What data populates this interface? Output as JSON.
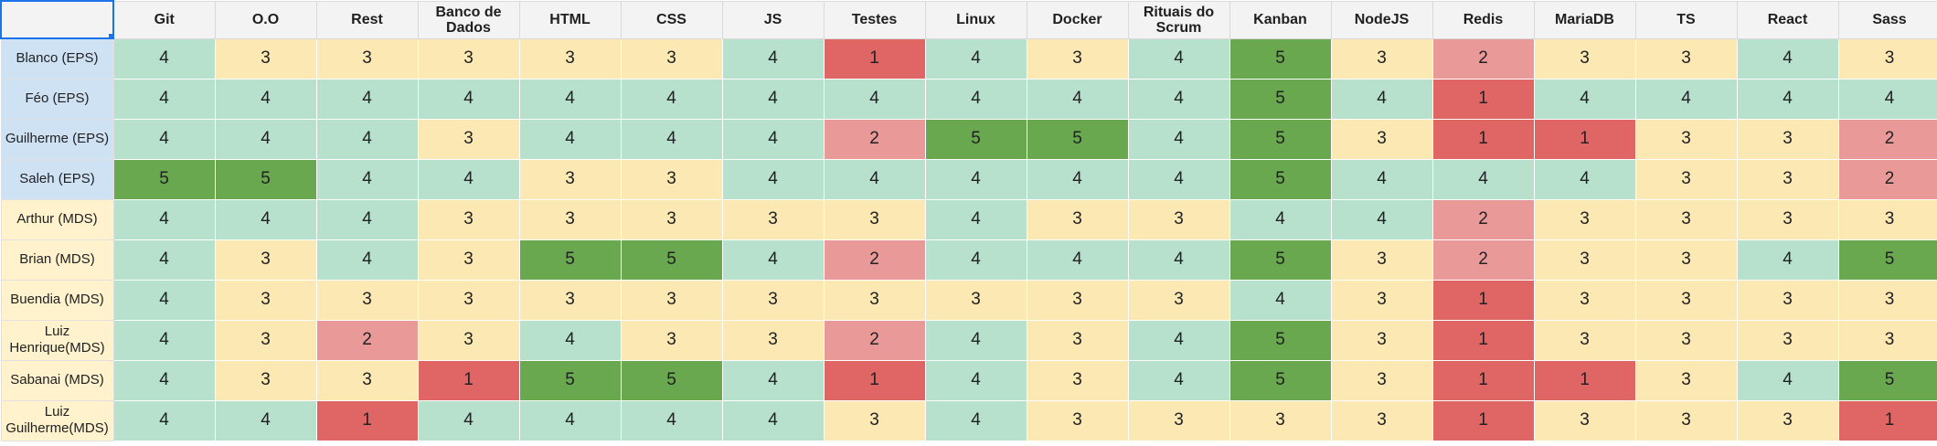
{
  "colors": {
    "score_1": "#e06666",
    "score_2": "#ea9999",
    "score_3": "#fce8b2",
    "score_4": "#b7e1cd",
    "score_5": "#6aa84f",
    "eps_row_header": "#cfe2f3",
    "mds_row_header": "#fff2cc",
    "header_bg": "#f3f3f3",
    "selection": "#1a73e8"
  },
  "columns": [
    "Git",
    "O.O",
    "Rest",
    "Banco de Dados",
    "HTML",
    "CSS",
    "JS",
    "Testes",
    "Linux",
    "Docker",
    "Rituais do Scrum",
    "Kanban",
    "NodeJS",
    "Redis",
    "MariaDB",
    "TS",
    "React",
    "Sass"
  ],
  "rows": [
    {
      "name": "Blanco (EPS)",
      "group": "EPS",
      "scores": [
        4,
        3,
        3,
        3,
        3,
        3,
        4,
        1,
        4,
        3,
        4,
        5,
        3,
        2,
        3,
        3,
        4,
        3
      ]
    },
    {
      "name": "Féo (EPS)",
      "group": "EPS",
      "scores": [
        4,
        4,
        4,
        4,
        4,
        4,
        4,
        4,
        4,
        4,
        4,
        5,
        4,
        1,
        4,
        4,
        4,
        4
      ]
    },
    {
      "name": "Guilherme (EPS)",
      "group": "EPS",
      "scores": [
        4,
        4,
        4,
        3,
        4,
        4,
        4,
        2,
        5,
        5,
        4,
        5,
        3,
        1,
        1,
        3,
        3,
        2
      ]
    },
    {
      "name": "Saleh (EPS)",
      "group": "EPS",
      "scores": [
        5,
        5,
        4,
        4,
        3,
        3,
        4,
        4,
        4,
        4,
        4,
        5,
        4,
        4,
        4,
        3,
        3,
        2
      ]
    },
    {
      "name": "Arthur (MDS)",
      "group": "MDS",
      "scores": [
        4,
        4,
        4,
        3,
        3,
        3,
        3,
        3,
        4,
        3,
        3,
        4,
        4,
        2,
        3,
        3,
        3,
        3
      ]
    },
    {
      "name": "Brian (MDS)",
      "group": "MDS",
      "scores": [
        4,
        3,
        4,
        3,
        5,
        5,
        4,
        2,
        4,
        4,
        4,
        5,
        3,
        2,
        3,
        3,
        4,
        5
      ]
    },
    {
      "name": "Buendia (MDS)",
      "group": "MDS",
      "scores": [
        4,
        3,
        3,
        3,
        3,
        3,
        3,
        3,
        3,
        3,
        3,
        4,
        3,
        1,
        3,
        3,
        3,
        3
      ]
    },
    {
      "name": "Luiz Henrique(MDS)",
      "group": "MDS",
      "scores": [
        4,
        3,
        2,
        3,
        4,
        3,
        3,
        2,
        4,
        3,
        4,
        5,
        3,
        1,
        3,
        3,
        3,
        3
      ]
    },
    {
      "name": "Sabanai (MDS)",
      "group": "MDS",
      "scores": [
        4,
        3,
        3,
        1,
        5,
        5,
        4,
        1,
        4,
        3,
        4,
        5,
        3,
        1,
        1,
        3,
        4,
        5
      ]
    },
    {
      "name": "Luiz Guilherme(MDS)",
      "group": "MDS",
      "scores": [
        4,
        4,
        1,
        4,
        4,
        4,
        4,
        3,
        4,
        3,
        3,
        3,
        3,
        1,
        3,
        3,
        3,
        1
      ]
    }
  ]
}
